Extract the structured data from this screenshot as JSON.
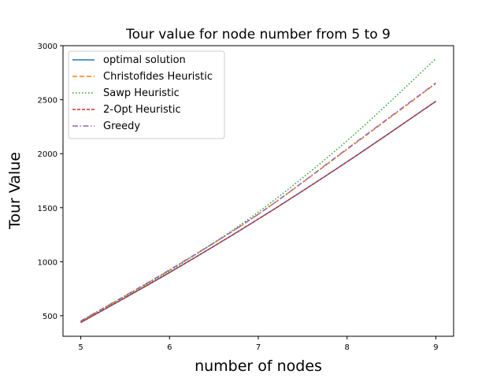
{
  "chart_data": {
    "type": "line",
    "title": "Tour value for node number from 5 to 9",
    "xlabel": "number of nodes",
    "ylabel": "Tour Value",
    "xlim": [
      4.8,
      9.2
    ],
    "ylim": [
      310,
      3000
    ],
    "xticks": [
      5,
      6,
      7,
      8,
      9
    ],
    "yticks": [
      500,
      1000,
      1500,
      2000,
      2500,
      3000
    ],
    "grid": false,
    "legend_position": "top-left",
    "x": [
      5,
      6,
      7,
      8,
      9
    ],
    "series": [
      {
        "name": "optimal solution",
        "values": [
          437,
          900,
          1395,
          1925,
          2485
        ],
        "color": "#1f77b4",
        "dash": "solid"
      },
      {
        "name": "Christofides Heuristic",
        "values": [
          450,
          922,
          1440,
          2040,
          2650
        ],
        "color": "#ff7f0e",
        "dash": "dashed"
      },
      {
        "name": "Sawp Heuristic",
        "values": [
          445,
          915,
          1460,
          2120,
          2880
        ],
        "color": "#2ca02c",
        "dash": "dotted"
      },
      {
        "name": "2-Opt Heuristic",
        "values": [
          437,
          900,
          1395,
          1925,
          2485
        ],
        "color": "#d62728",
        "dash": "densedash"
      },
      {
        "name": "Greedy",
        "values": [
          452,
          925,
          1440,
          2045,
          2655
        ],
        "color": "#9467bd",
        "dash": "dashdot"
      }
    ]
  }
}
